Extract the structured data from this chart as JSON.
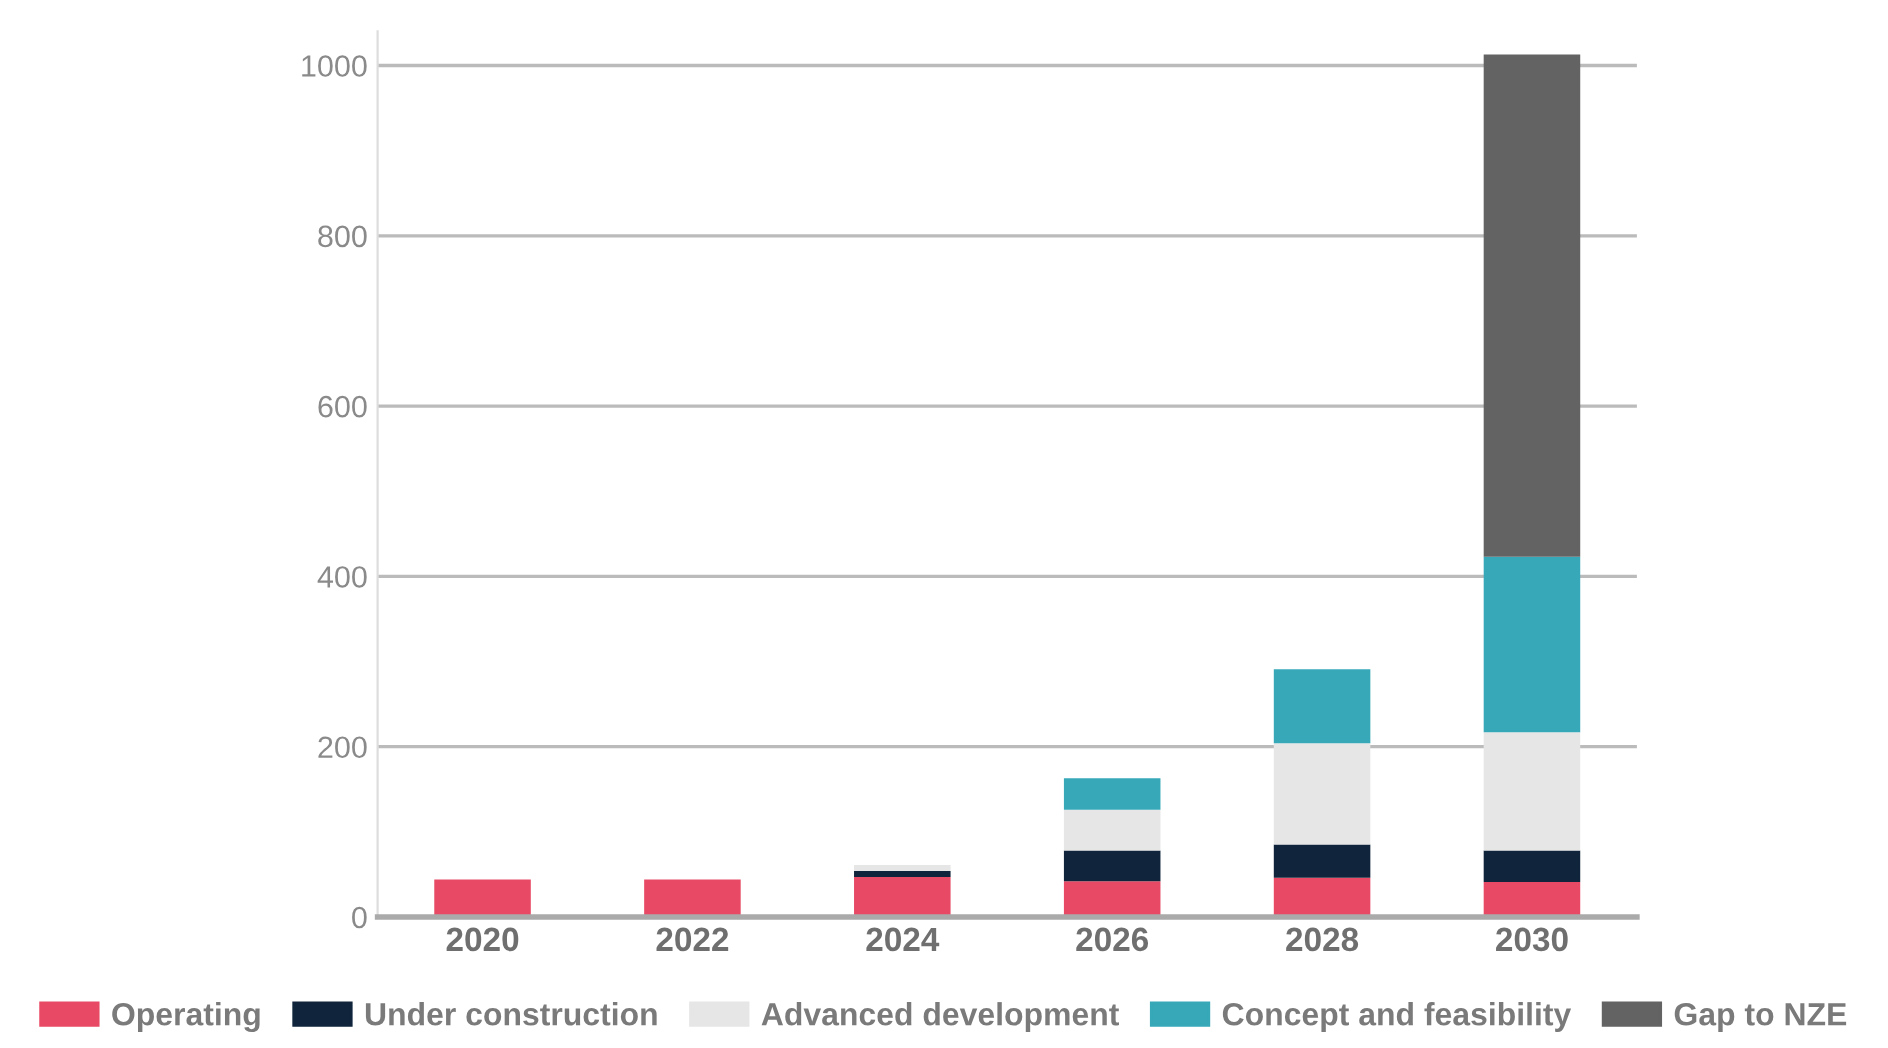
{
  "chart_data": {
    "type": "bar",
    "stacked": true,
    "categories": [
      "2020",
      "2022",
      "2024",
      "2026",
      "2028",
      "2030"
    ],
    "series": [
      {
        "name": "Operating",
        "color": "#e84a66",
        "values": [
          44,
          44,
          47,
          42,
          46,
          41
        ]
      },
      {
        "name": "Under construction",
        "color": "#10253b",
        "values": [
          0,
          0,
          7,
          36,
          39,
          37
        ]
      },
      {
        "name": "Advanced development",
        "color": "#e6e6e6",
        "values": [
          0,
          0,
          7,
          48,
          119,
          139
        ]
      },
      {
        "name": "Concept and feasibility",
        "color": "#36a8b8",
        "values": [
          0,
          0,
          0,
          37,
          87,
          206
        ]
      },
      {
        "name": "Gap to NZE",
        "color": "#636363",
        "values": [
          0,
          0,
          0,
          0,
          0,
          590
        ]
      }
    ],
    "ylim": [
      0,
      1040
    ],
    "yticks": [
      0,
      200,
      400,
      600,
      800,
      1000
    ],
    "grid": "y",
    "legend": "bottom"
  }
}
